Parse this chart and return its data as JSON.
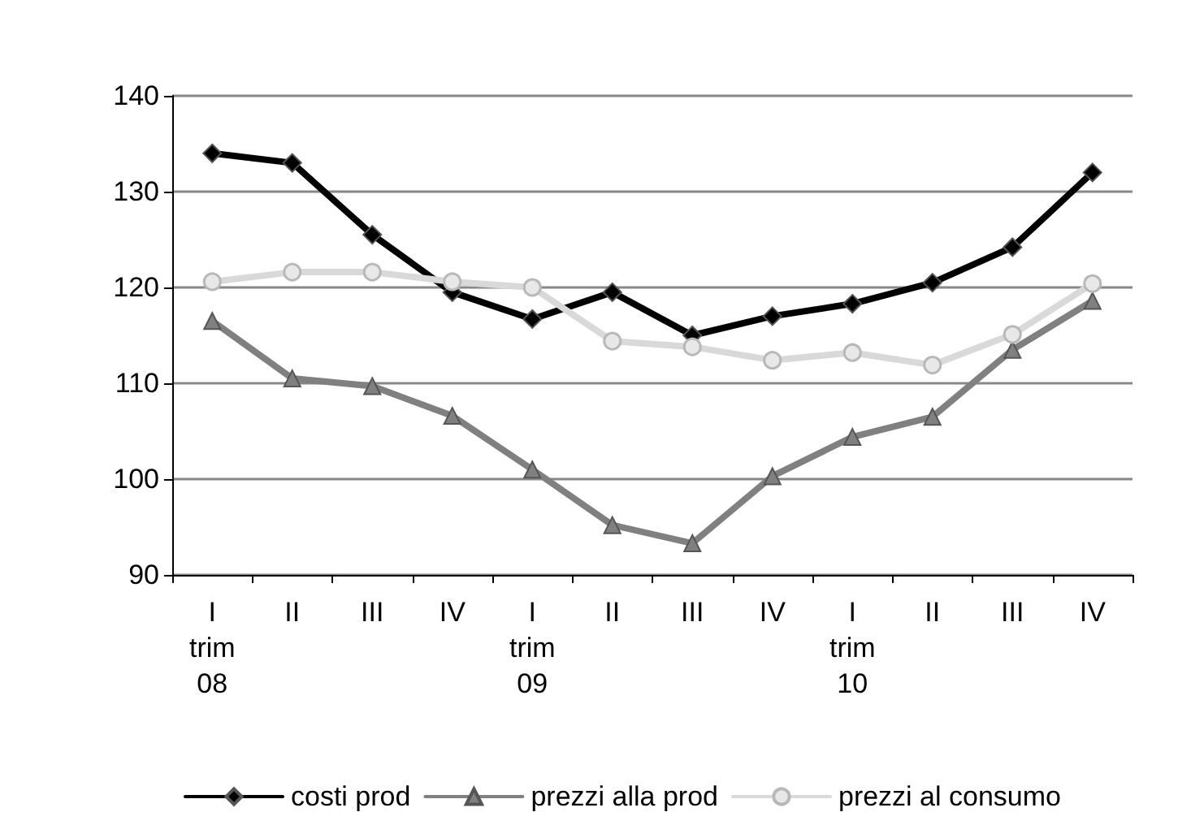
{
  "chart_data": {
    "type": "line",
    "categories": [
      "I\ntrim\n08",
      "II",
      "III",
      "IV",
      "I\ntrim\n09",
      "II",
      "III",
      "IV",
      "I\ntrim\n10",
      "II",
      "III",
      "IV"
    ],
    "series": [
      {
        "name": "costi prod",
        "color": "#000000",
        "marker": "diamond",
        "values": [
          134,
          133,
          125.5,
          119.5,
          116.7,
          119.5,
          115,
          117,
          118.3,
          120.5,
          124.2,
          132
        ]
      },
      {
        "name": "prezzi alla prod",
        "color": "#808080",
        "marker": "triangle",
        "values": [
          116.5,
          110.5,
          109.7,
          106.6,
          101,
          95.2,
          93.3,
          100.3,
          104.4,
          106.5,
          113.5,
          118.6
        ]
      },
      {
        "name": "prezzi al consumo",
        "color": "#d9d9d9",
        "marker": "circle",
        "values": [
          120.6,
          121.6,
          121.6,
          120.6,
          120,
          114.4,
          113.8,
          112.4,
          113.2,
          111.9,
          115.1,
          120.4
        ]
      }
    ],
    "ylim": [
      90,
      140
    ],
    "yticks": [
      90,
      100,
      110,
      120,
      130,
      140
    ],
    "grid": "y",
    "legend": "bottom",
    "line_style": "solid"
  }
}
